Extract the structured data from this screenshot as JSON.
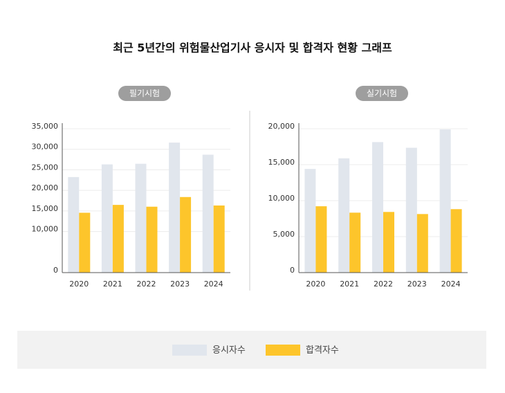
{
  "title": "최근 5년간의 위험물산업기사 응시자 및 합격자 현황 그래프",
  "chart_data": [
    {
      "type": "bar",
      "title": "필기시험",
      "categories": [
        "2020",
        "2021",
        "2022",
        "2023",
        "2024"
      ],
      "series": [
        {
          "name": "응시자수",
          "color": "#e1e6ed",
          "values": [
            23240,
            26320,
            26470,
            31620,
            28680
          ]
        },
        {
          "name": "합격자수",
          "color": "#fdc52b",
          "values": [
            14560,
            16470,
            16030,
            18380,
            16320
          ]
        }
      ],
      "ylim": [
        0,
        35000
      ],
      "yticks": [
        0,
        {
          "value": 10000,
          "label": "10,000"
        },
        {
          "value": 15000,
          "label": "15,000"
        },
        {
          "value": 20000,
          "label": "20,000"
        },
        {
          "value": 25000,
          "label": "25,000"
        },
        {
          "value": 30000,
          "label": "30,000"
        },
        {
          "value": 35000,
          "label": "35,000"
        }
      ],
      "grid": true
    },
    {
      "type": "bar",
      "title": "실기시험",
      "categories": [
        "2020",
        "2021",
        "2022",
        "2023",
        "2024"
      ],
      "series": [
        {
          "name": "응시자수",
          "color": "#e1e6ed",
          "values": [
            14410,
            15880,
            18140,
            17350,
            19900
          ]
        },
        {
          "name": "합격자수",
          "color": "#fdc52b",
          "values": [
            9220,
            8330,
            8430,
            8140,
            8820
          ]
        }
      ],
      "ylim": [
        0,
        20000
      ],
      "yticks": [
        0,
        {
          "value": 5000,
          "label": "5,000"
        },
        {
          "value": 10000,
          "label": "10,000"
        },
        {
          "value": 15000,
          "label": "15,000"
        },
        {
          "value": 20000,
          "label": "20,000"
        }
      ],
      "grid": true
    }
  ]
}
